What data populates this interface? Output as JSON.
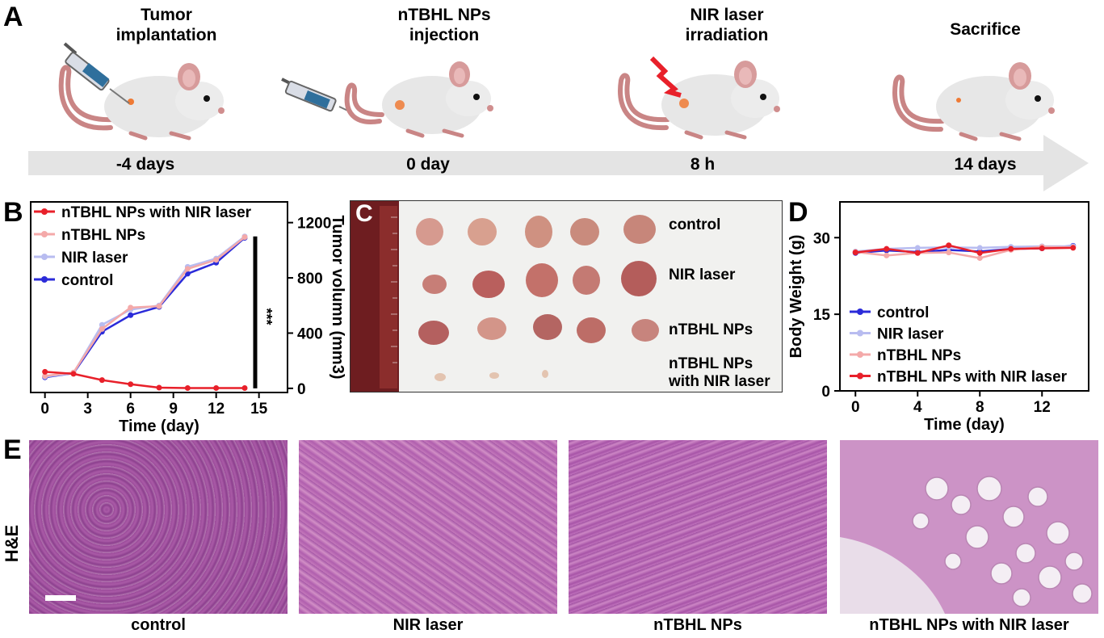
{
  "panels": {
    "a": "A",
    "b": "B",
    "c": "C",
    "d": "D",
    "e": "E"
  },
  "timeline": {
    "steps": [
      {
        "title": "Tumor\nimplantation",
        "time": "-4 days"
      },
      {
        "title": "nTBHL NPs\ninjection",
        "time": "0 day"
      },
      {
        "title": "NIR laser\nirradiation",
        "time": "8 h"
      },
      {
        "title": "Sacrifice",
        "time": "14 days"
      }
    ]
  },
  "photo_labels": [
    "control",
    "NIR laser",
    "nTBHL NPs",
    "nTBHL NPs\nwith NIR laser"
  ],
  "histology": {
    "row_label": "H&E",
    "labels": [
      "control",
      "NIR laser",
      "nTBHL NPs",
      "nTBHL NPs with NIR laser"
    ]
  },
  "colors": {
    "control": "#2b2bd9",
    "nir": "#b8bcf0",
    "np": "#f4a9a9",
    "np_nir": "#e8202a",
    "arrow": "#e3e3e3"
  },
  "chart_data": [
    {
      "id": "tumor",
      "type": "line",
      "xlabel": "Time (day)",
      "ylabel": "Tumor volumn (mm3)",
      "xticks": [
        0,
        3,
        6,
        9,
        12,
        15
      ],
      "yticks": [
        0,
        400,
        800,
        1200
      ],
      "xlim": [
        -1,
        17
      ],
      "ylim": [
        -30,
        1350
      ],
      "significance": "***",
      "legend": [
        "nTBHL NPs with NIR laser",
        "nTBHL NPs",
        "NIR laser",
        "control"
      ],
      "series": [
        {
          "name": "control",
          "x": [
            0,
            2,
            4,
            6,
            8,
            10,
            12,
            14
          ],
          "values": [
            80,
            110,
            410,
            530,
            590,
            830,
            910,
            1090
          ]
        },
        {
          "name": "NIR laser",
          "x": [
            0,
            2,
            4,
            6,
            8,
            10,
            12,
            14
          ],
          "values": [
            85,
            110,
            460,
            570,
            600,
            880,
            940,
            1100
          ]
        },
        {
          "name": "nTBHL NPs",
          "x": [
            0,
            2,
            4,
            6,
            8,
            10,
            12,
            14
          ],
          "values": [
            90,
            115,
            430,
            585,
            595,
            865,
            930,
            1095
          ]
        },
        {
          "name": "nTBHL NPs with NIR laser",
          "x": [
            0,
            2,
            4,
            6,
            8,
            10,
            12,
            14
          ],
          "values": [
            120,
            105,
            60,
            30,
            5,
            2,
            2,
            2
          ]
        }
      ]
    },
    {
      "id": "weight",
      "type": "line",
      "xlabel": "Time (day)",
      "ylabel": "Body Weight (g)",
      "xticks": [
        0,
        4,
        8,
        12
      ],
      "yticks": [
        0,
        15,
        30
      ],
      "xlim": [
        -1,
        15
      ],
      "ylim": [
        0,
        37
      ],
      "legend": [
        "control",
        "NIR laser",
        "nTBHL NPs",
        "nTBHL NPs with NIR laser"
      ],
      "series": [
        {
          "name": "control",
          "x": [
            0,
            2,
            4,
            6,
            8,
            10,
            12,
            14
          ],
          "values": [
            27.0,
            27.5,
            27.2,
            27.6,
            27.3,
            27.8,
            27.9,
            28.4
          ]
        },
        {
          "name": "NIR laser",
          "x": [
            0,
            2,
            4,
            6,
            8,
            10,
            12,
            14
          ],
          "values": [
            27.3,
            27.8,
            28.0,
            28.1,
            28.0,
            28.2,
            28.3,
            28.3
          ]
        },
        {
          "name": "nTBHL NPs",
          "x": [
            0,
            2,
            4,
            6,
            8,
            10,
            12,
            14
          ],
          "values": [
            27.2,
            26.5,
            27.0,
            27.1,
            26.0,
            27.6,
            28.2,
            28.1
          ]
        },
        {
          "name": "nTBHL NPs with NIR laser",
          "x": [
            0,
            2,
            4,
            6,
            8,
            10,
            12,
            14
          ],
          "values": [
            27.1,
            27.8,
            27.0,
            28.5,
            27.0,
            27.8,
            27.9,
            28.0
          ]
        }
      ]
    }
  ]
}
